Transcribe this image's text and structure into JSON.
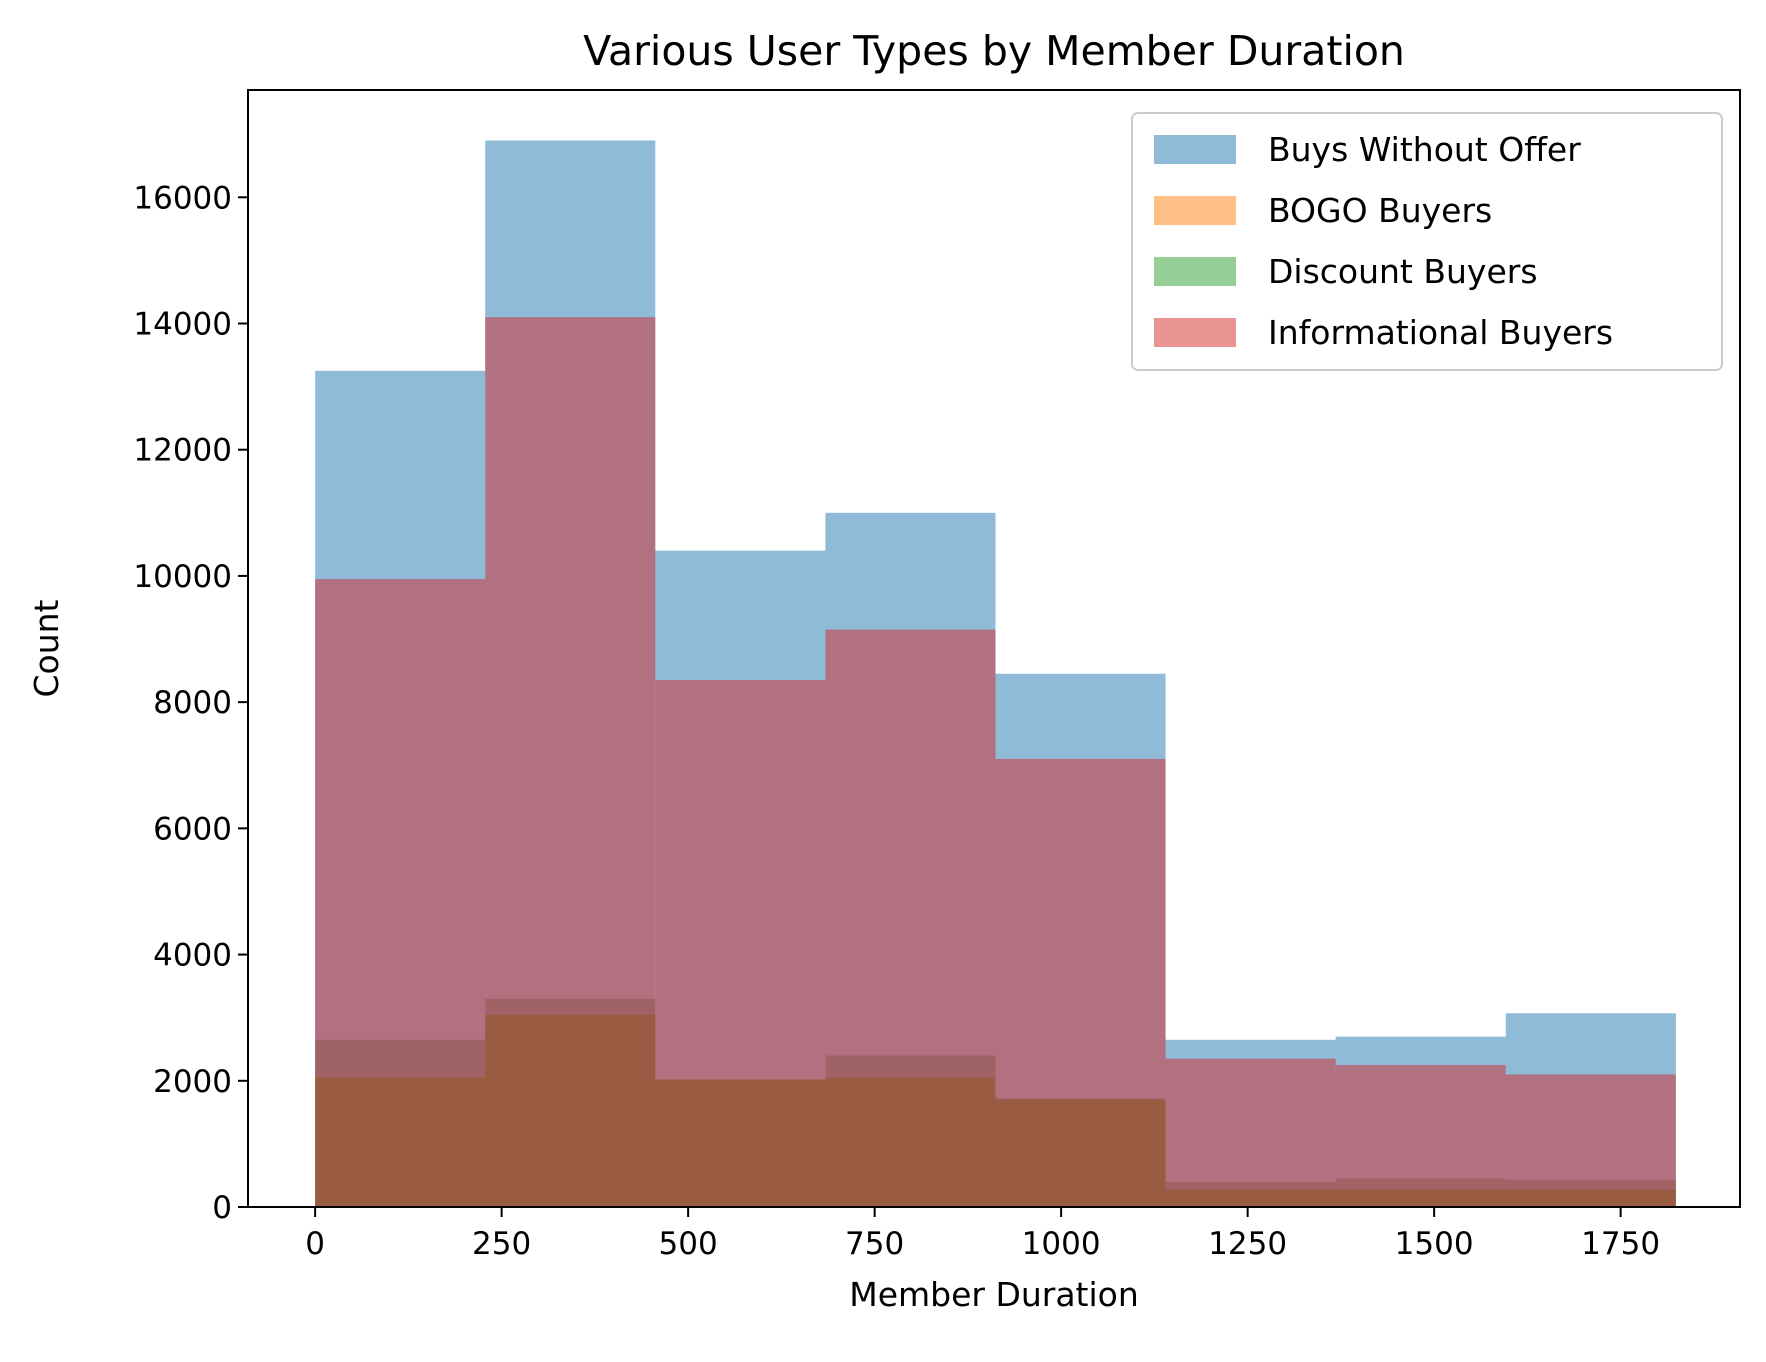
{
  "chart_data": {
    "type": "histogram",
    "title": "Various User Types by Member Duration",
    "xlabel": "Member Duration",
    "ylabel": "Count",
    "xlim": [
      -90,
      1910
    ],
    "ylim": [
      0,
      17700
    ],
    "xticks": [
      0,
      250,
      500,
      750,
      1000,
      1250,
      1500,
      1750
    ],
    "yticks": [
      0,
      2000,
      4000,
      6000,
      8000,
      10000,
      12000,
      14000,
      16000
    ],
    "bin_edges": [
      0,
      228,
      456,
      684,
      912,
      1140,
      1368,
      1596,
      1824
    ],
    "legend_position": "upper right",
    "grid": false,
    "series": [
      {
        "name": "Buys Without Offer",
        "color": "#1f77b4",
        "alpha": 0.5,
        "values": [
          13250,
          16900,
          10400,
          11000,
          8450,
          2650,
          2700,
          3070
        ]
      },
      {
        "name": "BOGO Buyers",
        "color": "#ff7f0e",
        "alpha": 0.5,
        "values": [
          2050,
          3050,
          2020,
          2050,
          1700,
          270,
          270,
          270
        ]
      },
      {
        "name": "Discount Buyers",
        "color": "#2ca02c",
        "alpha": 0.5,
        "values": [
          2050,
          3050,
          2020,
          2050,
          1700,
          270,
          270,
          270
        ]
      },
      {
        "name": "Informational Buyers",
        "color": "#d62728",
        "alpha": 0.5,
        "values": [
          9950,
          14100,
          8350,
          9150,
          7100,
          2350,
          2250,
          2100
        ]
      }
    ],
    "extra_bars_note": "",
    "overlay_bars": [
      {
        "name": "",
        "color": "#8c564b",
        "alpha": 0.5,
        "values": [
          2650,
          3300,
          2020,
          2400,
          1720,
          400,
          450,
          430
        ]
      }
    ]
  }
}
